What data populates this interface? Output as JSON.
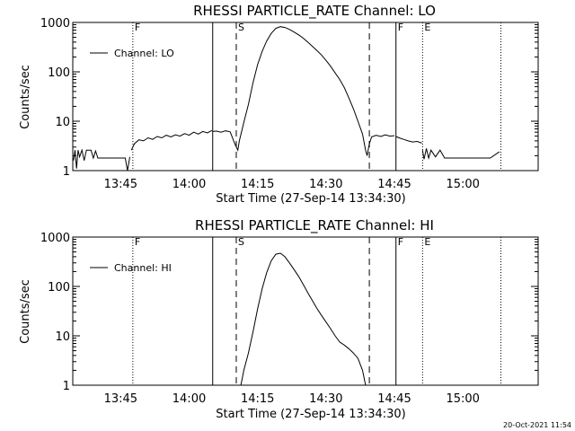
{
  "stamp": "20-Oct-2021 11:54",
  "chart_data": [
    {
      "type": "line",
      "title": "RHESSI PARTICLE_RATE Channel: LO",
      "xlabel": "Start Time (27-Sep-14 13:34:30)",
      "ylabel": "Counts/sec",
      "yscale": "log",
      "ylim": [
        1,
        1000
      ],
      "xlim_minutes_after_start": [
        0,
        102
      ],
      "x_ticks": [
        "13:45",
        "14:00",
        "14:15",
        "14:30",
        "14:45",
        "15:00"
      ],
      "y_ticks": [
        "1",
        "10",
        "100",
        "1000"
      ],
      "legend": "Channel: LO",
      "legend_position": "top-left",
      "markers": [
        {
          "label": "F",
          "time": "13:47:40",
          "style": "dotted"
        },
        {
          "label": "",
          "time": "14:05:10",
          "style": "solid"
        },
        {
          "label": "S",
          "time": "14:10:20",
          "style": "dashed"
        },
        {
          "label": "",
          "time": "14:39:30",
          "style": "dashed"
        },
        {
          "label": "F",
          "time": "14:45:20",
          "style": "solid"
        },
        {
          "label": "E",
          "time": "14:51:10",
          "style": "dotted"
        },
        {
          "label": "",
          "time": "15:08:20",
          "style": "dotted"
        }
      ],
      "series": [
        {
          "name": "Channel: LO",
          "segments": [
            {
              "x": [
                "13:34:40",
                "13:35:00",
                "13:35:20",
                "13:35:40",
                "13:36:00",
                "13:36:30",
                "13:37:00",
                "13:37:30",
                "13:38:00",
                "13:38:30",
                "13:39:00",
                "13:39:30",
                "13:40:00",
                "13:41:00",
                "13:42:00",
                "13:43:00",
                "13:44:00",
                "13:45:00",
                "13:46:00",
                "13:46:30",
                "13:47:00"
              ],
              "y": [
                1.6,
                2.6,
                1.1,
                2.6,
                1.9,
                2.6,
                1.6,
                2.6,
                2.6,
                2.6,
                1.8,
                2.5,
                1.8,
                1.8,
                1.8,
                1.8,
                1.8,
                1.8,
                1.8,
                1.0,
                1.9
              ]
            },
            {
              "x": [
                "13:47:20",
                "13:48:00",
                "13:49:00",
                "13:50:00",
                "13:51:00",
                "13:52:00",
                "13:53:00",
                "13:54:00",
                "13:55:00",
                "13:56:00",
                "13:57:00",
                "13:58:00",
                "13:59:00",
                "14:00:00",
                "14:01:00",
                "14:02:00",
                "14:03:00",
                "14:04:00",
                "14:05:00"
              ],
              "y": [
                2.6,
                3.5,
                4.2,
                4.0,
                4.6,
                4.3,
                4.9,
                4.6,
                5.2,
                4.8,
                5.3,
                5.0,
                5.6,
                5.2,
                6.0,
                5.5,
                6.2,
                5.8,
                6.5
              ]
            },
            {
              "x": [
                "14:05:10",
                "14:06:00",
                "14:07:00",
                "14:08:00",
                "14:09:00",
                "14:10:00",
                "14:10:40",
                "14:11:00",
                "14:12:00",
                "14:13:00",
                "14:14:00",
                "14:15:00",
                "14:16:00",
                "14:17:00",
                "14:18:00",
                "14:19:00",
                "14:20:00",
                "14:21:00",
                "14:22:00",
                "14:23:00",
                "14:24:00",
                "14:25:00",
                "14:26:00",
                "14:27:00",
                "14:28:00",
                "14:29:00",
                "14:30:00",
                "14:31:00",
                "14:32:00",
                "14:33:00",
                "14:34:00",
                "14:35:00",
                "14:36:00",
                "14:37:00",
                "14:38:00",
                "14:38:40",
                "14:39:00",
                "14:39:30",
                "14:40:00",
                "14:41:00",
                "14:42:00",
                "14:43:00",
                "14:44:00",
                "14:45:00"
              ],
              "y": [
                6.2,
                6.3,
                6.0,
                6.4,
                6.1,
                3.5,
                2.6,
                4.0,
                9.5,
                22,
                60,
                140,
                260,
                420,
                600,
                760,
                820,
                790,
                720,
                640,
                560,
                480,
                400,
                330,
                270,
                220,
                170,
                130,
                95,
                70,
                48,
                30,
                18,
                10,
                5.5,
                2.6,
                2.0,
                3.5,
                4.8,
                5.2,
                4.9,
                5.3,
                5.0,
                5.1
              ]
            },
            {
              "x": [
                "14:45:20",
                "14:46:00",
                "14:47:00",
                "14:48:00",
                "14:49:00",
                "14:50:00",
                "14:51:00"
              ],
              "y": [
                4.9,
                4.6,
                4.3,
                4.0,
                3.8,
                3.9,
                3.6
              ]
            },
            {
              "x": [
                "14:51:10",
                "14:51:30",
                "14:52:00",
                "14:52:30",
                "14:53:00",
                "14:54:00",
                "14:55:00",
                "14:56:00",
                "14:57:00",
                "14:58:00",
                "14:59:00",
                "15:00:00",
                "15:02:00",
                "15:04:00",
                "15:06:00",
                "15:08:00"
              ],
              "y": [
                2.6,
                1.7,
                2.8,
                1.8,
                2.6,
                1.9,
                2.6,
                1.8,
                1.8,
                1.8,
                1.8,
                1.8,
                1.8,
                1.8,
                1.8,
                2.4
              ]
            }
          ]
        }
      ]
    },
    {
      "type": "line",
      "title": "RHESSI PARTICLE_RATE Channel: HI",
      "xlabel": "Start Time (27-Sep-14 13:34:30)",
      "ylabel": "Counts/sec",
      "yscale": "log",
      "ylim": [
        1,
        1000
      ],
      "xlim_minutes_after_start": [
        0,
        102
      ],
      "x_ticks": [
        "13:45",
        "14:00",
        "14:15",
        "14:30",
        "14:45",
        "15:00"
      ],
      "y_ticks": [
        "1",
        "10",
        "100",
        "1000"
      ],
      "legend": "Channel: HI",
      "legend_position": "top-left",
      "markers": [
        {
          "label": "F",
          "time": "13:47:40",
          "style": "dotted"
        },
        {
          "label": "",
          "time": "14:05:10",
          "style": "solid"
        },
        {
          "label": "S",
          "time": "14:10:20",
          "style": "dashed"
        },
        {
          "label": "",
          "time": "14:39:30",
          "style": "dashed"
        },
        {
          "label": "F",
          "time": "14:45:20",
          "style": "solid"
        },
        {
          "label": "E",
          "time": "14:51:10",
          "style": "dotted"
        },
        {
          "label": "",
          "time": "15:08:20",
          "style": "dotted"
        }
      ],
      "series": [
        {
          "name": "Channel: HI",
          "segments": [
            {
              "x": [
                "14:11:20",
                "14:12:00",
                "14:13:00",
                "14:14:00",
                "14:15:00",
                "14:16:00",
                "14:17:00",
                "14:18:00",
                "14:19:00",
                "14:20:00",
                "14:21:00",
                "14:22:00",
                "14:23:00",
                "14:24:00",
                "14:25:00",
                "14:26:00",
                "14:27:00",
                "14:28:00",
                "14:29:00",
                "14:30:00",
                "14:31:00",
                "14:32:00",
                "14:33:00",
                "14:34:00",
                "14:35:00",
                "14:36:00",
                "14:37:00",
                "14:38:00",
                "14:38:40"
              ],
              "y": [
                1.0,
                2.0,
                4.5,
                12,
                35,
                90,
                190,
                330,
                450,
                470,
                400,
                300,
                220,
                160,
                110,
                75,
                52,
                36,
                26,
                19,
                14,
                10,
                7.5,
                6.5,
                5.5,
                4.5,
                3.5,
                2.0,
                1.0
              ]
            }
          ]
        }
      ]
    }
  ]
}
